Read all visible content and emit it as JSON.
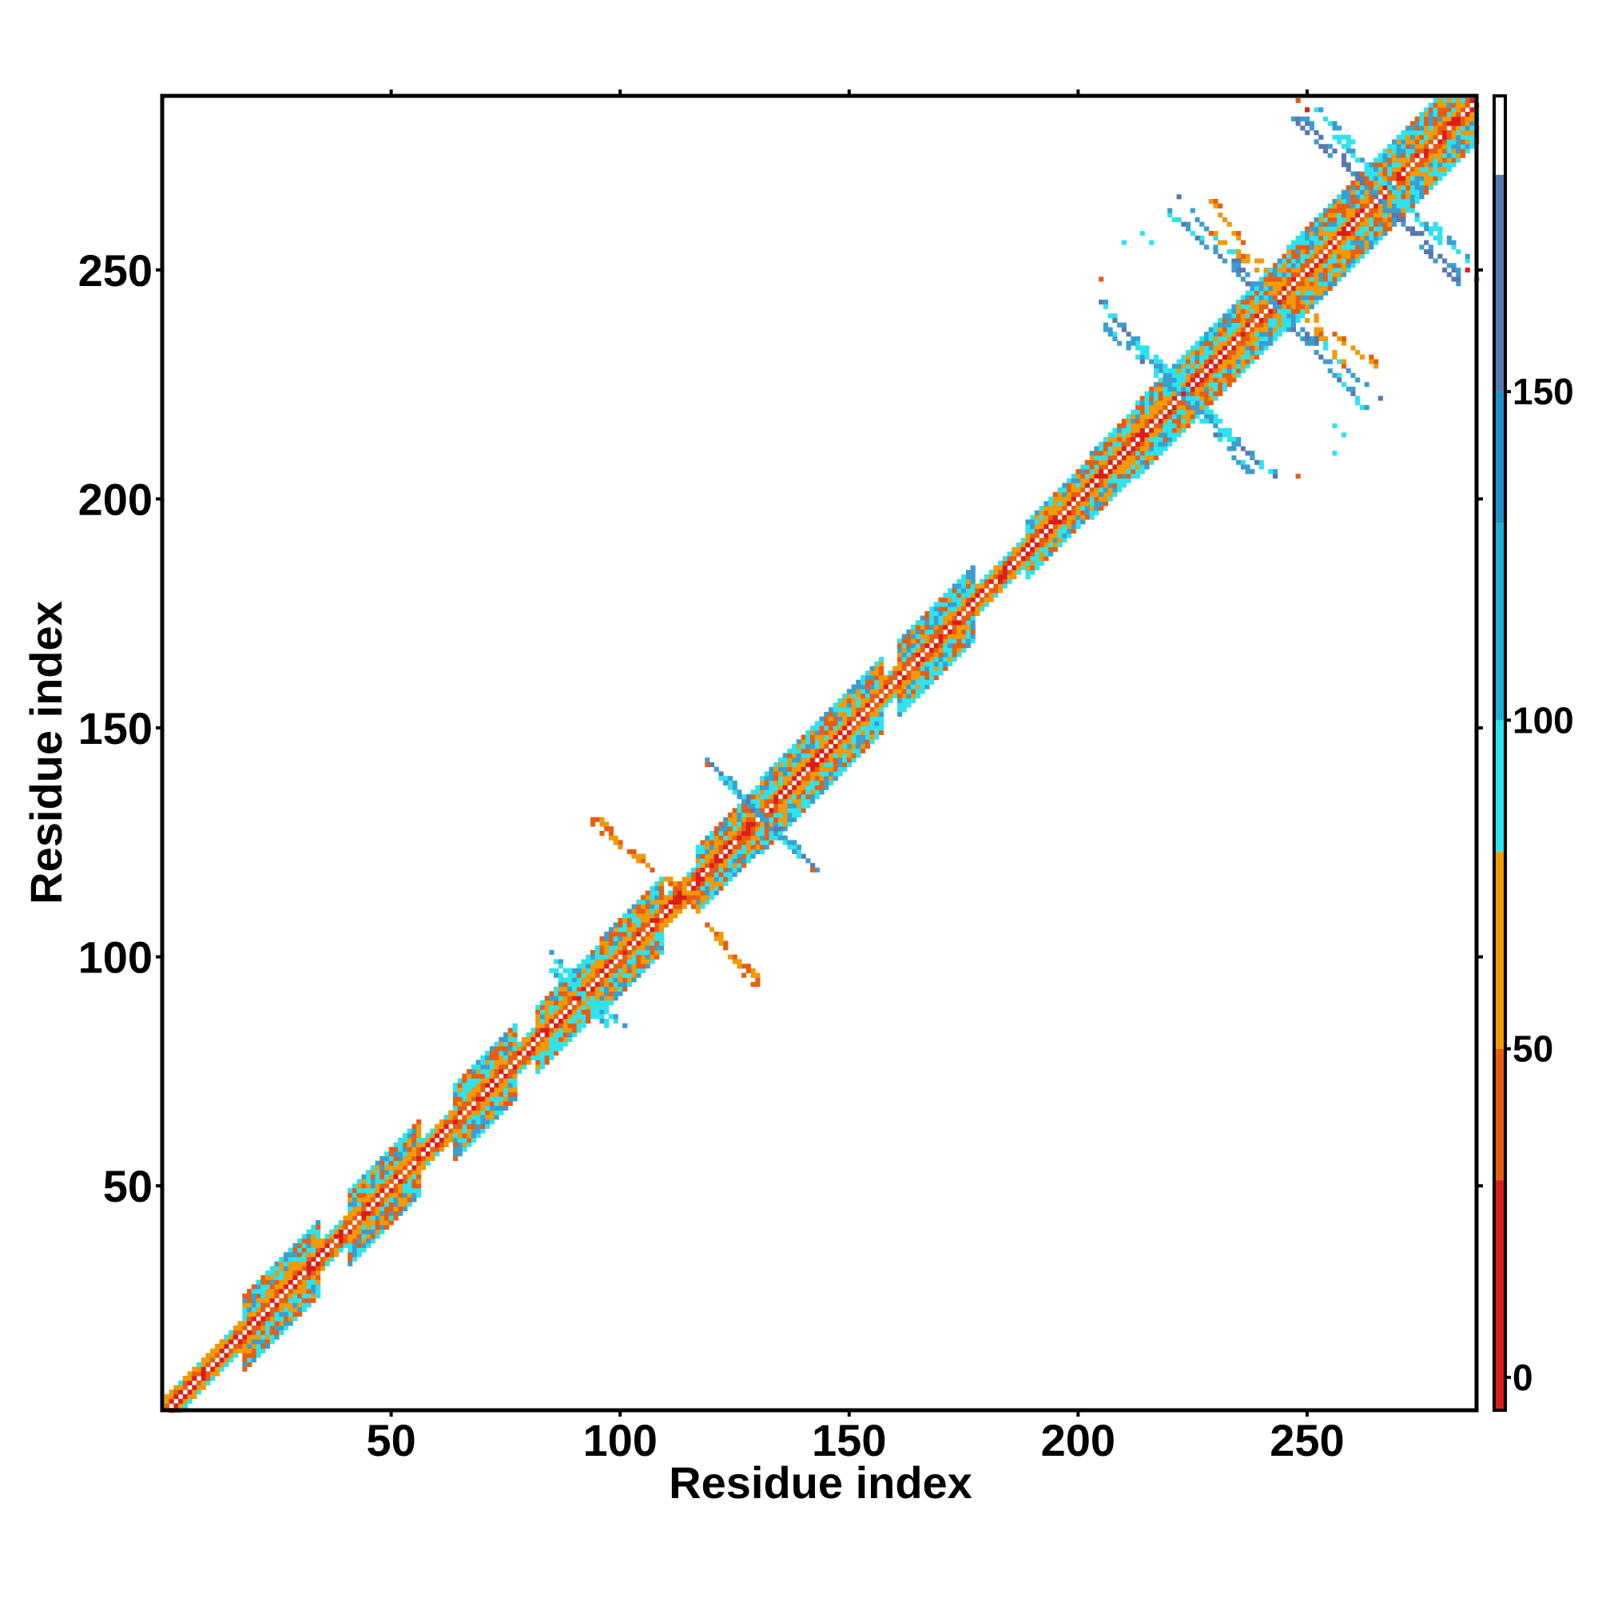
{
  "chart_data": {
    "type": "heatmap",
    "title": "",
    "xlabel": "Residue index",
    "ylabel": "Residue index",
    "xlim": [
      1,
      287
    ],
    "ylim": [
      1,
      287
    ],
    "x_ticks": [
      50,
      100,
      150,
      200,
      250
    ],
    "y_ticks": [
      50,
      100,
      150,
      200,
      250
    ],
    "colorbar": {
      "range": [
        -5,
        195
      ],
      "ticks": [
        0,
        50,
        100,
        150
      ],
      "stops": [
        {
          "from": -5,
          "to": 30,
          "color": "#dd1c1c"
        },
        {
          "from": 30,
          "to": 50,
          "color": "#e85d10"
        },
        {
          "from": 50,
          "to": 80,
          "color": "#f09a06"
        },
        {
          "from": 80,
          "to": 100,
          "color": "#2ee3ee"
        },
        {
          "from": 100,
          "to": 130,
          "color": "#1fb0d8"
        },
        {
          "from": 130,
          "to": 150,
          "color": "#1e93c8"
        },
        {
          "from": 150,
          "to": 183,
          "color": "#5a78b0"
        },
        {
          "from": 183,
          "to": 195,
          "color": "#ffffff"
        }
      ]
    },
    "colors": {
      "red": "#dd1c1c",
      "orange": "#e85d10",
      "amber": "#f09a06",
      "cyan": "#2ee3ee",
      "blue": "#3a9ed0",
      "steel": "#5a78b0"
    },
    "diagonal_profile": [
      {
        "from": 1,
        "to": 17,
        "halfwidth": 3
      },
      {
        "from": 18,
        "to": 34,
        "halfwidth": 8
      },
      {
        "from": 35,
        "to": 40,
        "halfwidth": 3
      },
      {
        "from": 41,
        "to": 56,
        "halfwidth": 8
      },
      {
        "from": 57,
        "to": 63,
        "halfwidth": 3
      },
      {
        "from": 64,
        "to": 77,
        "halfwidth": 8
      },
      {
        "from": 78,
        "to": 81,
        "halfwidth": 3
      },
      {
        "from": 82,
        "to": 95,
        "halfwidth": 7
      },
      {
        "from": 96,
        "to": 109,
        "halfwidth": 8
      },
      {
        "from": 110,
        "to": 116,
        "halfwidth": 3
      },
      {
        "from": 117,
        "to": 130,
        "halfwidth": 7
      },
      {
        "from": 131,
        "to": 157,
        "halfwidth": 8
      },
      {
        "from": 158,
        "to": 160,
        "halfwidth": 3
      },
      {
        "from": 161,
        "to": 177,
        "halfwidth": 8
      },
      {
        "from": 178,
        "to": 188,
        "halfwidth": 3
      },
      {
        "from": 189,
        "to": 202,
        "halfwidth": 6
      },
      {
        "from": 203,
        "to": 212,
        "halfwidth": 7
      },
      {
        "from": 213,
        "to": 245,
        "halfwidth": 8
      },
      {
        "from": 246,
        "to": 287,
        "halfwidth": 9
      }
    ],
    "offdiag_bands": [
      {
        "start": [
          84,
          102
        ],
        "end": [
          97,
          85
        ],
        "color": "cyan"
      },
      {
        "start": [
          95,
          130
        ],
        "end": [
          104,
          121
        ],
        "color": "amber"
      },
      {
        "start": [
          113,
          115
        ],
        "end": [
          129,
          94
        ],
        "color": "amber"
      },
      {
        "start": [
          119,
          143
        ],
        "end": [
          143,
          118
        ],
        "color": "blue"
      },
      {
        "start": [
          204,
          244
        ],
        "end": [
          237,
          206
        ],
        "color": "blue"
      },
      {
        "start": [
          212,
          234
        ],
        "end": [
          232,
          216
        ],
        "color": "cyan"
      },
      {
        "start": [
          228,
          266
        ],
        "end": [
          258,
          229
        ],
        "color": "amber"
      },
      {
        "start": [
          222,
          266
        ],
        "end": [
          264,
          218
        ],
        "color": "blue"
      },
      {
        "start": [
          247,
          283
        ],
        "end": [
          283,
          249
        ],
        "color": "steel"
      },
      {
        "start": [
          252,
          285
        ],
        "end": [
          279,
          256
        ],
        "color": "cyan"
      }
    ],
    "offdiag_spots": [
      {
        "x": 248,
        "y": 287,
        "color": "orange"
      },
      {
        "x": 256,
        "y": 210,
        "color": "cyan"
      },
      {
        "x": 258,
        "y": 214,
        "color": "cyan"
      },
      {
        "x": 205,
        "y": 248,
        "color": "orange"
      },
      {
        "x": 216,
        "y": 256,
        "color": "cyan"
      },
      {
        "x": 285,
        "y": 250,
        "color": "red"
      },
      {
        "x": 142,
        "y": 119,
        "color": "orange"
      }
    ]
  }
}
